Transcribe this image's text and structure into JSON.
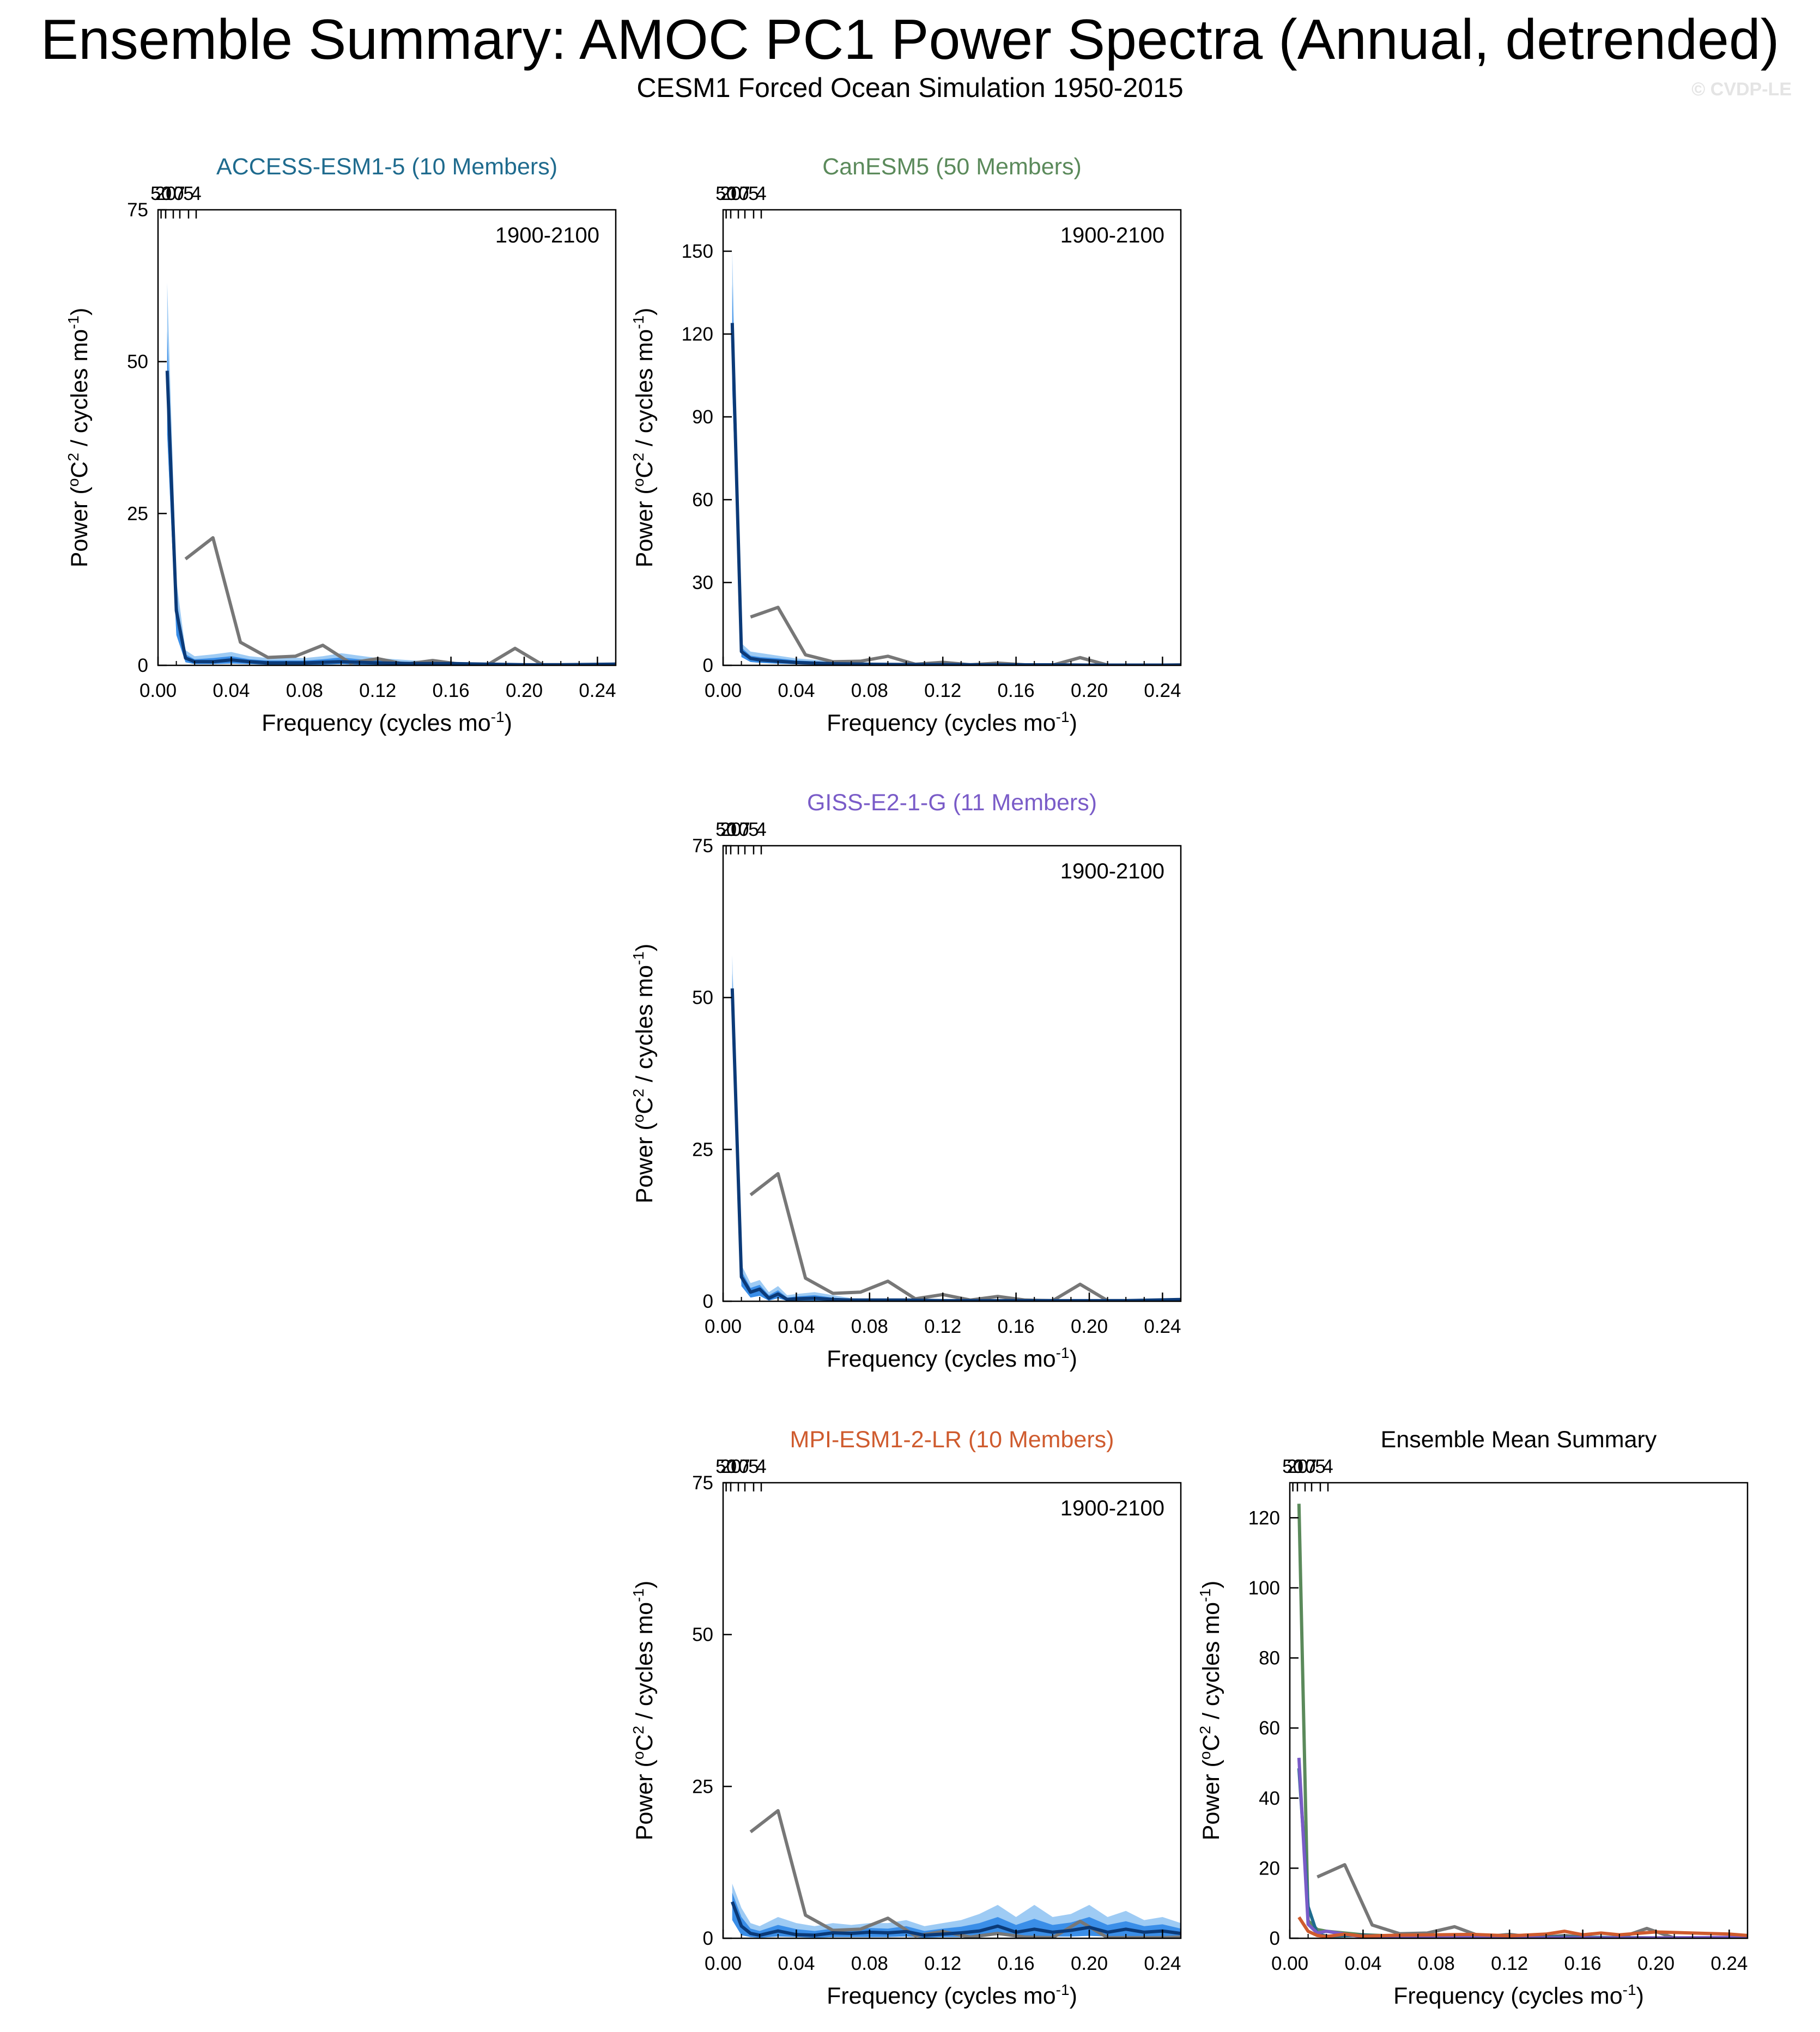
{
  "title": "Ensemble Summary: AMOC PC1 Power Spectra (Annual, detrended)",
  "subtitle": "CESM1 Forced Ocean Simulation 1950-2015",
  "watermark": "© CVDP-LE",
  "colors": {
    "observation": "#777777",
    "ensemble_mean": "#0b3a78",
    "spread_outer": "#9ecbf4",
    "spread_inner": "#3a8ee8",
    "ACCESS-ESM1-5": "#1f6b8e",
    "CanESM5": "#5b8a5b",
    "GISS-E2-1-G": "#7a5cc8",
    "MPI-ESM1-2-LR": "#cf5b2e"
  },
  "chart_data": [
    {
      "type": "line",
      "title": "ACCESS-ESM1-5 (10 Members)",
      "title_color": "#1f6b8e",
      "annotation": "1900-2100",
      "xlabel": "Frequency (cycles mo",
      "xlabel_sup": "-1",
      "xlabel_end": ")",
      "ylabel": "Power (",
      "ylabel_sup1": "o",
      "ylabel_mid": "C",
      "ylabel_sup2": "2",
      "ylabel_end": " / cycles mo",
      "ylabel_sup3": "-1",
      "ylabel_close": ")",
      "xlim": [
        0,
        0.25
      ],
      "ylim": [
        0,
        75
      ],
      "xticks": [
        0.0,
        0.04,
        0.08,
        0.12,
        0.16,
        0.2,
        0.24
      ],
      "xtick_labels": [
        "0.00",
        "0.04",
        "0.08",
        "0.12",
        "0.16",
        "0.20",
        "0.24"
      ],
      "yticks": [
        0,
        25,
        50,
        75
      ],
      "ytick_labels": [
        "0",
        "25",
        "50",
        "75"
      ],
      "top_ticks": [
        50,
        20,
        10,
        7,
        5,
        4
      ],
      "top_tick_labels": [
        "50",
        "20",
        "10",
        "7",
        "5",
        "4"
      ],
      "grid": false,
      "observation": {
        "x": [
          0.015,
          0.03,
          0.045,
          0.06,
          0.075,
          0.09,
          0.105,
          0.12,
          0.135,
          0.15,
          0.165,
          0.18,
          0.195,
          0.21,
          0.225,
          0.24,
          0.25
        ],
        "y": [
          17.5,
          21,
          3.8,
          1.3,
          1.5,
          3.3,
          0.4,
          1.1,
          0.2,
          0.8,
          0.2,
          0.1,
          2.8,
          0.1,
          0.1,
          0.1,
          0.2
        ]
      },
      "mean": {
        "x": [
          0.005,
          0.01,
          0.015,
          0.02,
          0.03,
          0.04,
          0.05,
          0.06,
          0.07,
          0.08,
          0.09,
          0.1,
          0.11,
          0.12,
          0.14,
          0.16,
          0.18,
          0.2,
          0.22,
          0.25
        ],
        "y": [
          48.5,
          9,
          1.2,
          0.6,
          0.6,
          0.9,
          0.6,
          0.4,
          0.4,
          0.4,
          0.5,
          0.6,
          0.5,
          0.4,
          0.3,
          0.3,
          0.2,
          0.1,
          0.1,
          0.2
        ]
      },
      "spread_upper": [
        63,
        14,
        2.5,
        1.5,
        1.8,
        2.2,
        1.5,
        1.2,
        1.3,
        1.2,
        1.5,
        2.0,
        1.6,
        1.2,
        0.8,
        0.6,
        0.4,
        0.3,
        0.2,
        0.3
      ],
      "spread_inner_upper": [
        55,
        11,
        1.8,
        1.0,
        1.2,
        1.5,
        1.0,
        0.8,
        0.8,
        0.8,
        1.0,
        1.3,
        1.0,
        0.8,
        0.5,
        0.4,
        0.3,
        0.2,
        0.15,
        0.25
      ],
      "spread_lower": [
        38,
        5,
        0.5,
        0.2,
        0.2,
        0.3,
        0.2,
        0.1,
        0.1,
        0.1,
        0.1,
        0.2,
        0.1,
        0.1,
        0.1,
        0.1,
        0.05,
        0.05,
        0.05,
        0.1
      ]
    },
    {
      "type": "line",
      "title": "CanESM5 (50 Members)",
      "title_color": "#5b8a5b",
      "annotation": "1900-2100",
      "xlabel": "Frequency (cycles mo",
      "xlabel_sup": "-1",
      "xlabel_end": ")",
      "ylabel": "Power (",
      "ylabel_sup1": "o",
      "ylabel_mid": "C",
      "ylabel_sup2": "2",
      "ylabel_end": " / cycles mo",
      "ylabel_sup3": "-1",
      "ylabel_close": ")",
      "xlim": [
        0,
        0.25
      ],
      "ylim": [
        0,
        165
      ],
      "xticks": [
        0.0,
        0.04,
        0.08,
        0.12,
        0.16,
        0.2,
        0.24
      ],
      "xtick_labels": [
        "0.00",
        "0.04",
        "0.08",
        "0.12",
        "0.16",
        "0.20",
        "0.24"
      ],
      "yticks": [
        0,
        30,
        60,
        90,
        120,
        150
      ],
      "ytick_labels": [
        "0",
        "30",
        "60",
        "90",
        "120",
        "150"
      ],
      "top_ticks": [
        50,
        20,
        10,
        7,
        5,
        4
      ],
      "top_tick_labels": [
        "50",
        "20",
        "10",
        "7",
        "5",
        "4"
      ],
      "grid": false,
      "observation": {
        "x": [
          0.015,
          0.03,
          0.045,
          0.06,
          0.075,
          0.09,
          0.105,
          0.12,
          0.135,
          0.15,
          0.165,
          0.18,
          0.195,
          0.21,
          0.225,
          0.24,
          0.25
        ],
        "y": [
          17.5,
          21,
          3.8,
          1.3,
          1.5,
          3.3,
          0.4,
          1.1,
          0.2,
          0.8,
          0.2,
          0.1,
          2.8,
          0.1,
          0.1,
          0.1,
          0.2
        ]
      },
      "mean": {
        "x": [
          0.005,
          0.01,
          0.015,
          0.02,
          0.03,
          0.04,
          0.05,
          0.06,
          0.07,
          0.08,
          0.1,
          0.12,
          0.14,
          0.16,
          0.18,
          0.2,
          0.22,
          0.25
        ],
        "y": [
          124,
          5,
          2.5,
          2,
          1.5,
          1.0,
          0.8,
          0.6,
          0.5,
          0.4,
          0.3,
          0.3,
          0.2,
          0.2,
          0.2,
          0.1,
          0.1,
          0.1
        ]
      },
      "spread_upper": [
        150,
        8,
        5,
        4.5,
        3.5,
        2.5,
        2,
        1.5,
        1.2,
        1,
        0.8,
        0.7,
        0.5,
        0.5,
        0.4,
        0.3,
        0.3,
        0.3
      ],
      "spread_inner_upper": [
        138,
        6.5,
        3.5,
        3,
        2.5,
        1.8,
        1.4,
        1,
        0.8,
        0.7,
        0.5,
        0.5,
        0.3,
        0.3,
        0.3,
        0.2,
        0.2,
        0.2
      ],
      "spread_lower": [
        100,
        3,
        1.2,
        0.9,
        0.6,
        0.4,
        0.3,
        0.2,
        0.2,
        0.1,
        0.1,
        0.1,
        0.05,
        0.05,
        0.05,
        0.05,
        0.05,
        0.05
      ]
    },
    {
      "type": "line",
      "title": "GISS-E2-1-G (11 Members)",
      "title_color": "#7a5cc8",
      "annotation": "1900-2100",
      "xlabel": "Frequency (cycles mo",
      "xlabel_sup": "-1",
      "xlabel_end": ")",
      "ylabel": "Power (",
      "ylabel_sup1": "o",
      "ylabel_mid": "C",
      "ylabel_sup2": "2",
      "ylabel_end": " / cycles mo",
      "ylabel_sup3": "-1",
      "ylabel_close": ")",
      "xlim": [
        0,
        0.25
      ],
      "ylim": [
        0,
        75
      ],
      "xticks": [
        0.0,
        0.04,
        0.08,
        0.12,
        0.16,
        0.2,
        0.24
      ],
      "xtick_labels": [
        "0.00",
        "0.04",
        "0.08",
        "0.12",
        "0.16",
        "0.20",
        "0.24"
      ],
      "yticks": [
        0,
        25,
        50,
        75
      ],
      "ytick_labels": [
        "0",
        "25",
        "50",
        "75"
      ],
      "top_ticks": [
        50,
        20,
        10,
        7,
        5,
        4
      ],
      "top_tick_labels": [
        "50",
        "20",
        "10",
        "7",
        "5",
        "4"
      ],
      "grid": false,
      "observation": {
        "x": [
          0.015,
          0.03,
          0.045,
          0.06,
          0.075,
          0.09,
          0.105,
          0.12,
          0.135,
          0.15,
          0.165,
          0.18,
          0.195,
          0.21,
          0.225,
          0.24,
          0.25
        ],
        "y": [
          17.5,
          21,
          3.8,
          1.3,
          1.5,
          3.3,
          0.4,
          1.1,
          0.2,
          0.8,
          0.2,
          0.1,
          2.8,
          0.1,
          0.1,
          0.1,
          0.2
        ]
      },
      "mean": {
        "x": [
          0.005,
          0.01,
          0.015,
          0.02,
          0.025,
          0.03,
          0.035,
          0.04,
          0.05,
          0.06,
          0.07,
          0.08,
          0.1,
          0.12,
          0.14,
          0.16,
          0.18,
          0.2,
          0.22,
          0.25
        ],
        "y": [
          51.5,
          4,
          1.5,
          2.0,
          0.5,
          1.2,
          0.3,
          0.4,
          0.5,
          0.3,
          0.2,
          0.2,
          0.2,
          0.1,
          0.1,
          0.1,
          0.1,
          0.1,
          0.1,
          0.3
        ]
      },
      "spread_upper": [
        57,
        6,
        3,
        3.5,
        1.5,
        2.5,
        1,
        1.2,
        1.5,
        1,
        0.5,
        0.4,
        0.3,
        0.2,
        0.2,
        0.2,
        0.2,
        0.2,
        0.2,
        0.4
      ],
      "spread_inner_upper": [
        54,
        5,
        2.2,
        2.7,
        1.0,
        1.8,
        0.6,
        0.8,
        1.0,
        0.6,
        0.3,
        0.3,
        0.25,
        0.15,
        0.15,
        0.15,
        0.15,
        0.15,
        0.15,
        0.35
      ],
      "spread_lower": [
        45,
        2.5,
        0.6,
        0.9,
        0.1,
        0.5,
        0.05,
        0.1,
        0.1,
        0.1,
        0.05,
        0.05,
        0.05,
        0.05,
        0.05,
        0.05,
        0.05,
        0.05,
        0.05,
        0.1
      ]
    },
    {
      "type": "line",
      "title": "MPI-ESM1-2-LR (10 Members)",
      "title_color": "#cf5b2e",
      "annotation": "1900-2100",
      "xlabel": "Frequency (cycles mo",
      "xlabel_sup": "-1",
      "xlabel_end": ")",
      "ylabel": "Power (",
      "ylabel_sup1": "o",
      "ylabel_mid": "C",
      "ylabel_sup2": "2",
      "ylabel_end": " / cycles mo",
      "ylabel_sup3": "-1",
      "ylabel_close": ")",
      "xlim": [
        0,
        0.25
      ],
      "ylim": [
        0,
        75
      ],
      "xticks": [
        0.0,
        0.04,
        0.08,
        0.12,
        0.16,
        0.2,
        0.24
      ],
      "xtick_labels": [
        "0.00",
        "0.04",
        "0.08",
        "0.12",
        "0.16",
        "0.20",
        "0.24"
      ],
      "yticks": [
        0,
        25,
        50,
        75
      ],
      "ytick_labels": [
        "0",
        "25",
        "50",
        "75"
      ],
      "top_ticks": [
        50,
        20,
        10,
        7,
        5,
        4
      ],
      "top_tick_labels": [
        "50",
        "20",
        "10",
        "7",
        "5",
        "4"
      ],
      "grid": false,
      "observation": {
        "x": [
          0.015,
          0.03,
          0.045,
          0.06,
          0.075,
          0.09,
          0.105,
          0.12,
          0.135,
          0.15,
          0.165,
          0.18,
          0.195,
          0.21,
          0.225,
          0.24,
          0.25
        ],
        "y": [
          17.5,
          21,
          3.8,
          1.3,
          1.5,
          3.3,
          0.4,
          1.1,
          0.2,
          0.8,
          0.2,
          0.1,
          2.8,
          0.1,
          0.1,
          0.1,
          0.2
        ]
      },
      "mean": {
        "x": [
          0.005,
          0.01,
          0.015,
          0.02,
          0.03,
          0.04,
          0.05,
          0.06,
          0.07,
          0.08,
          0.09,
          0.1,
          0.11,
          0.12,
          0.13,
          0.14,
          0.15,
          0.16,
          0.17,
          0.18,
          0.19,
          0.2,
          0.21,
          0.22,
          0.23,
          0.24,
          0.25
        ],
        "y": [
          6,
          2,
          0.8,
          0.5,
          1.2,
          0.6,
          0.5,
          0.9,
          0.8,
          1.0,
          0.9,
          1.1,
          0.5,
          0.7,
          0.9,
          1.2,
          2.0,
          1.0,
          1.5,
          1.0,
          1.3,
          1.8,
          1.0,
          1.5,
          1.0,
          1.2,
          0.8
        ]
      },
      "spread_upper": [
        9,
        5,
        2.5,
        2,
        3.5,
        2.5,
        2,
        2.5,
        2.2,
        2.5,
        2.5,
        3,
        2,
        2.5,
        3,
        4,
        5.5,
        3.5,
        5.5,
        3.5,
        4,
        5.5,
        3.5,
        4.5,
        3,
        3.5,
        2.5
      ],
      "spread_inner_upper": [
        7.5,
        3.5,
        1.6,
        1.2,
        2.2,
        1.5,
        1.2,
        1.6,
        1.5,
        1.7,
        1.6,
        2,
        1.2,
        1.6,
        1.9,
        2.5,
        3.5,
        2.2,
        3.2,
        2.2,
        2.6,
        3.5,
        2.2,
        2.8,
        2,
        2.3,
        1.6
      ],
      "spread_lower": [
        3,
        0.5,
        0.2,
        0.1,
        0.3,
        0.2,
        0.1,
        0.2,
        0.2,
        0.2,
        0.2,
        0.3,
        0.1,
        0.2,
        0.2,
        0.3,
        0.5,
        0.3,
        0.4,
        0.3,
        0.3,
        0.4,
        0.3,
        0.3,
        0.3,
        0.3,
        0.2
      ]
    },
    {
      "type": "line",
      "title": "Ensemble Mean Summary",
      "title_color": "#000000",
      "annotation": "",
      "xlabel": "Frequency (cycles mo",
      "xlabel_sup": "-1",
      "xlabel_end": ")",
      "ylabel": "Power (",
      "ylabel_sup1": "o",
      "ylabel_mid": "C",
      "ylabel_sup2": "2",
      "ylabel_end": " / cycles mo",
      "ylabel_sup3": "-1",
      "ylabel_close": ")",
      "xlim": [
        0,
        0.25
      ],
      "ylim": [
        0,
        130
      ],
      "xticks": [
        0.0,
        0.04,
        0.08,
        0.12,
        0.16,
        0.2,
        0.24
      ],
      "xtick_labels": [
        "0.00",
        "0.04",
        "0.08",
        "0.12",
        "0.16",
        "0.20",
        "0.24"
      ],
      "yticks": [
        0,
        20,
        40,
        60,
        80,
        100,
        120
      ],
      "ytick_labels": [
        "0",
        "20",
        "40",
        "60",
        "80",
        "100",
        "120"
      ],
      "top_ticks": [
        50,
        20,
        10,
        7,
        5,
        4
      ],
      "top_tick_labels": [
        "50",
        "20",
        "10",
        "7",
        "5",
        "4"
      ],
      "grid": false,
      "observation": {
        "x": [
          0.015,
          0.03,
          0.045,
          0.06,
          0.075,
          0.09,
          0.105,
          0.12,
          0.135,
          0.15,
          0.165,
          0.18,
          0.195,
          0.21,
          0.225,
          0.24,
          0.25
        ],
        "y": [
          17.5,
          21,
          3.8,
          1.3,
          1.5,
          3.3,
          0.4,
          1.1,
          0.2,
          0.8,
          0.2,
          0.1,
          2.8,
          0.1,
          0.1,
          0.1,
          0.2
        ]
      },
      "series": [
        {
          "color": "#5b8a5b",
          "x": [
            0.005,
            0.01,
            0.015,
            0.02,
            0.03,
            0.04,
            0.05,
            0.06,
            0.08,
            0.1,
            0.12,
            0.16,
            0.2,
            0.25
          ],
          "y": [
            124,
            5,
            2.5,
            2,
            1.5,
            1.0,
            0.8,
            0.6,
            0.4,
            0.3,
            0.3,
            0.2,
            0.1,
            0.1
          ]
        },
        {
          "color": "#1f6b8e",
          "x": [
            0.005,
            0.01,
            0.015,
            0.02,
            0.04,
            0.06,
            0.08,
            0.1,
            0.12,
            0.16,
            0.2,
            0.25
          ],
          "y": [
            48.5,
            9,
            1.2,
            0.6,
            0.9,
            0.4,
            0.4,
            0.6,
            0.4,
            0.3,
            0.1,
            0.2
          ]
        },
        {
          "color": "#7a5cc8",
          "x": [
            0.005,
            0.01,
            0.015,
            0.02,
            0.03,
            0.04,
            0.06,
            0.08,
            0.12,
            0.16,
            0.2,
            0.25
          ],
          "y": [
            51.5,
            4,
            1.5,
            2.0,
            1.2,
            0.4,
            0.3,
            0.2,
            0.1,
            0.1,
            0.1,
            0.3
          ]
        },
        {
          "color": "#cf5b2e",
          "x": [
            0.005,
            0.01,
            0.015,
            0.02,
            0.03,
            0.04,
            0.06,
            0.08,
            0.1,
            0.12,
            0.14,
            0.15,
            0.16,
            0.17,
            0.18,
            0.2,
            0.22,
            0.24,
            0.25
          ],
          "y": [
            6,
            2,
            0.8,
            0.5,
            1.2,
            0.6,
            0.9,
            1.0,
            1.1,
            0.7,
            1.2,
            2.0,
            1.0,
            1.5,
            1.0,
            1.8,
            1.5,
            1.2,
            0.8
          ]
        }
      ]
    }
  ]
}
